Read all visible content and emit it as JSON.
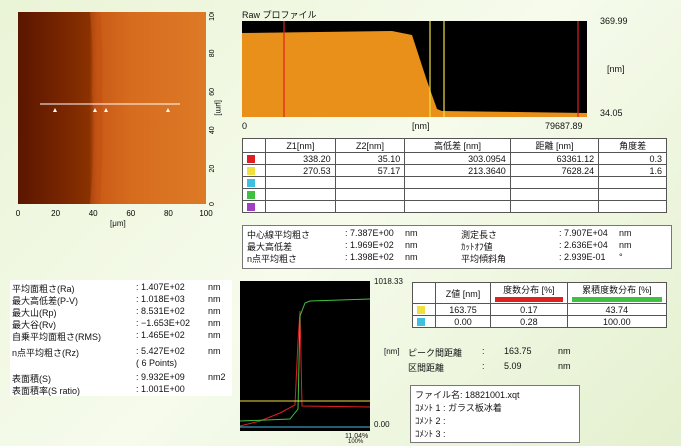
{
  "afm_image": {
    "x_unit": "[μm]",
    "y_unit": "[μm]",
    "x_ticks": [
      "0",
      "20",
      "40",
      "60",
      "80",
      "100"
    ],
    "y_ticks": [
      "100",
      "80",
      "60",
      "40",
      "20",
      "0"
    ],
    "colors": {
      "dark": "#1a0500",
      "mid": "#8a2a00",
      "bright": "#d4691c"
    }
  },
  "profile": {
    "title": "Raw プロファイル",
    "y_max": "369.99",
    "y_min": "34.05",
    "y_unit": "[nm]",
    "x_min": "0",
    "x_max": "79687.89",
    "x_unit": "[nm]",
    "fill_color": "#e8901a"
  },
  "measure_table": {
    "headers": [
      "Z1[nm]",
      "Z2[nm]",
      "高低差 [nm]",
      "距離 [nm]",
      "角度差"
    ],
    "rows": [
      {
        "color": "#e02020",
        "z1": "338.20",
        "z2": "35.10",
        "height_diff": "303.0954",
        "distance": "63361.12",
        "angle": "0.3"
      },
      {
        "color": "#f0e040",
        "z1": "270.53",
        "z2": "57.17",
        "height_diff": "213.3640",
        "distance": "7628.24",
        "angle": "1.6"
      },
      {
        "color": "#40c0e0",
        "z1": "",
        "z2": "",
        "height_diff": "",
        "distance": "",
        "angle": ""
      },
      {
        "color": "#40c040",
        "z1": "",
        "z2": "",
        "height_diff": "",
        "distance": "",
        "angle": ""
      },
      {
        "color": "#a040c0",
        "z1": "",
        "z2": "",
        "height_diff": "",
        "distance": "",
        "angle": ""
      }
    ]
  },
  "line_stats": {
    "left": [
      {
        "label": "中心線平均粗さ",
        "value": ": 7.387E+00",
        "unit": "nm"
      },
      {
        "label": "最大高低差",
        "value": ": 1.969E+02",
        "unit": "nm"
      },
      {
        "label": "n点平均粗さ",
        "value": ": 1.398E+02",
        "unit": "nm"
      }
    ],
    "right": [
      {
        "label": "測定長さ",
        "value": ": 7.907E+04",
        "unit": "nm"
      },
      {
        "label": "ｶｯﾄｵﾌ値",
        "value": ": 2.636E+04",
        "unit": "nm"
      },
      {
        "label": "平均傾斜角",
        "value": ": 2.939E-01",
        "unit": "°"
      }
    ]
  },
  "surface_stats": [
    {
      "label": "平均面粗さ(Ra)",
      "value": ": 1.407E+02",
      "unit": "nm"
    },
    {
      "label": "最大高低差(P-V)",
      "value": ": 1.018E+03",
      "unit": "nm"
    },
    {
      "label": "最大山(Rp)",
      "value": ": 8.531E+02",
      "unit": "nm"
    },
    {
      "label": "最大谷(Rv)",
      "value": ": −1.653E+02",
      "unit": "nm"
    },
    {
      "label": "自乗平均面粗さ(RMS)",
      "value": ": 1.465E+02",
      "unit": "nm"
    },
    {
      "label": "n点平均粗さ(Rz)",
      "value": ": 5.427E+02",
      "unit": "nm"
    },
    {
      "label": "",
      "value": "( 6  Points)",
      "unit": ""
    },
    {
      "label": "表面積(S)",
      "value": ": 9.932E+09",
      "unit": "nm2"
    },
    {
      "label": "表面積率(S ratio)",
      "value": ": 1.001E+00",
      "unit": ""
    }
  ],
  "histogram": {
    "y_top": "1018.33",
    "y_bottom": "0.00",
    "y_unit": "[nm]",
    "x_label1": "11.04%",
    "x_label2": "100%"
  },
  "distribution_table": {
    "headers": [
      "Z値 [nm]",
      "度数分布 [%]",
      "累積度数分布 [%]"
    ],
    "header_colors": [
      "",
      "#e02020",
      "#40c040"
    ],
    "rows": [
      {
        "color": "#f0e040",
        "z": "163.75",
        "freq": "0.17",
        "cum": "43.74"
      },
      {
        "color": "#40c0e0",
        "z": "0.00",
        "freq": "0.28",
        "cum": "100.00"
      }
    ]
  },
  "peak_info": [
    {
      "label": "ピーク間距離",
      "value": "163.75",
      "unit": "nm"
    },
    {
      "label": "区間距離",
      "value": "5.09",
      "unit": "nm"
    }
  ],
  "file_info": {
    "file_name": "ファイル名: 18821001.xqt",
    "comment1": "ｺﾒﾝﾄ 1 : ガラス板冰着",
    "comment2": "ｺﾒﾝﾄ 2 :",
    "comment3": "ｺﾒﾝﾄ 3 :"
  }
}
